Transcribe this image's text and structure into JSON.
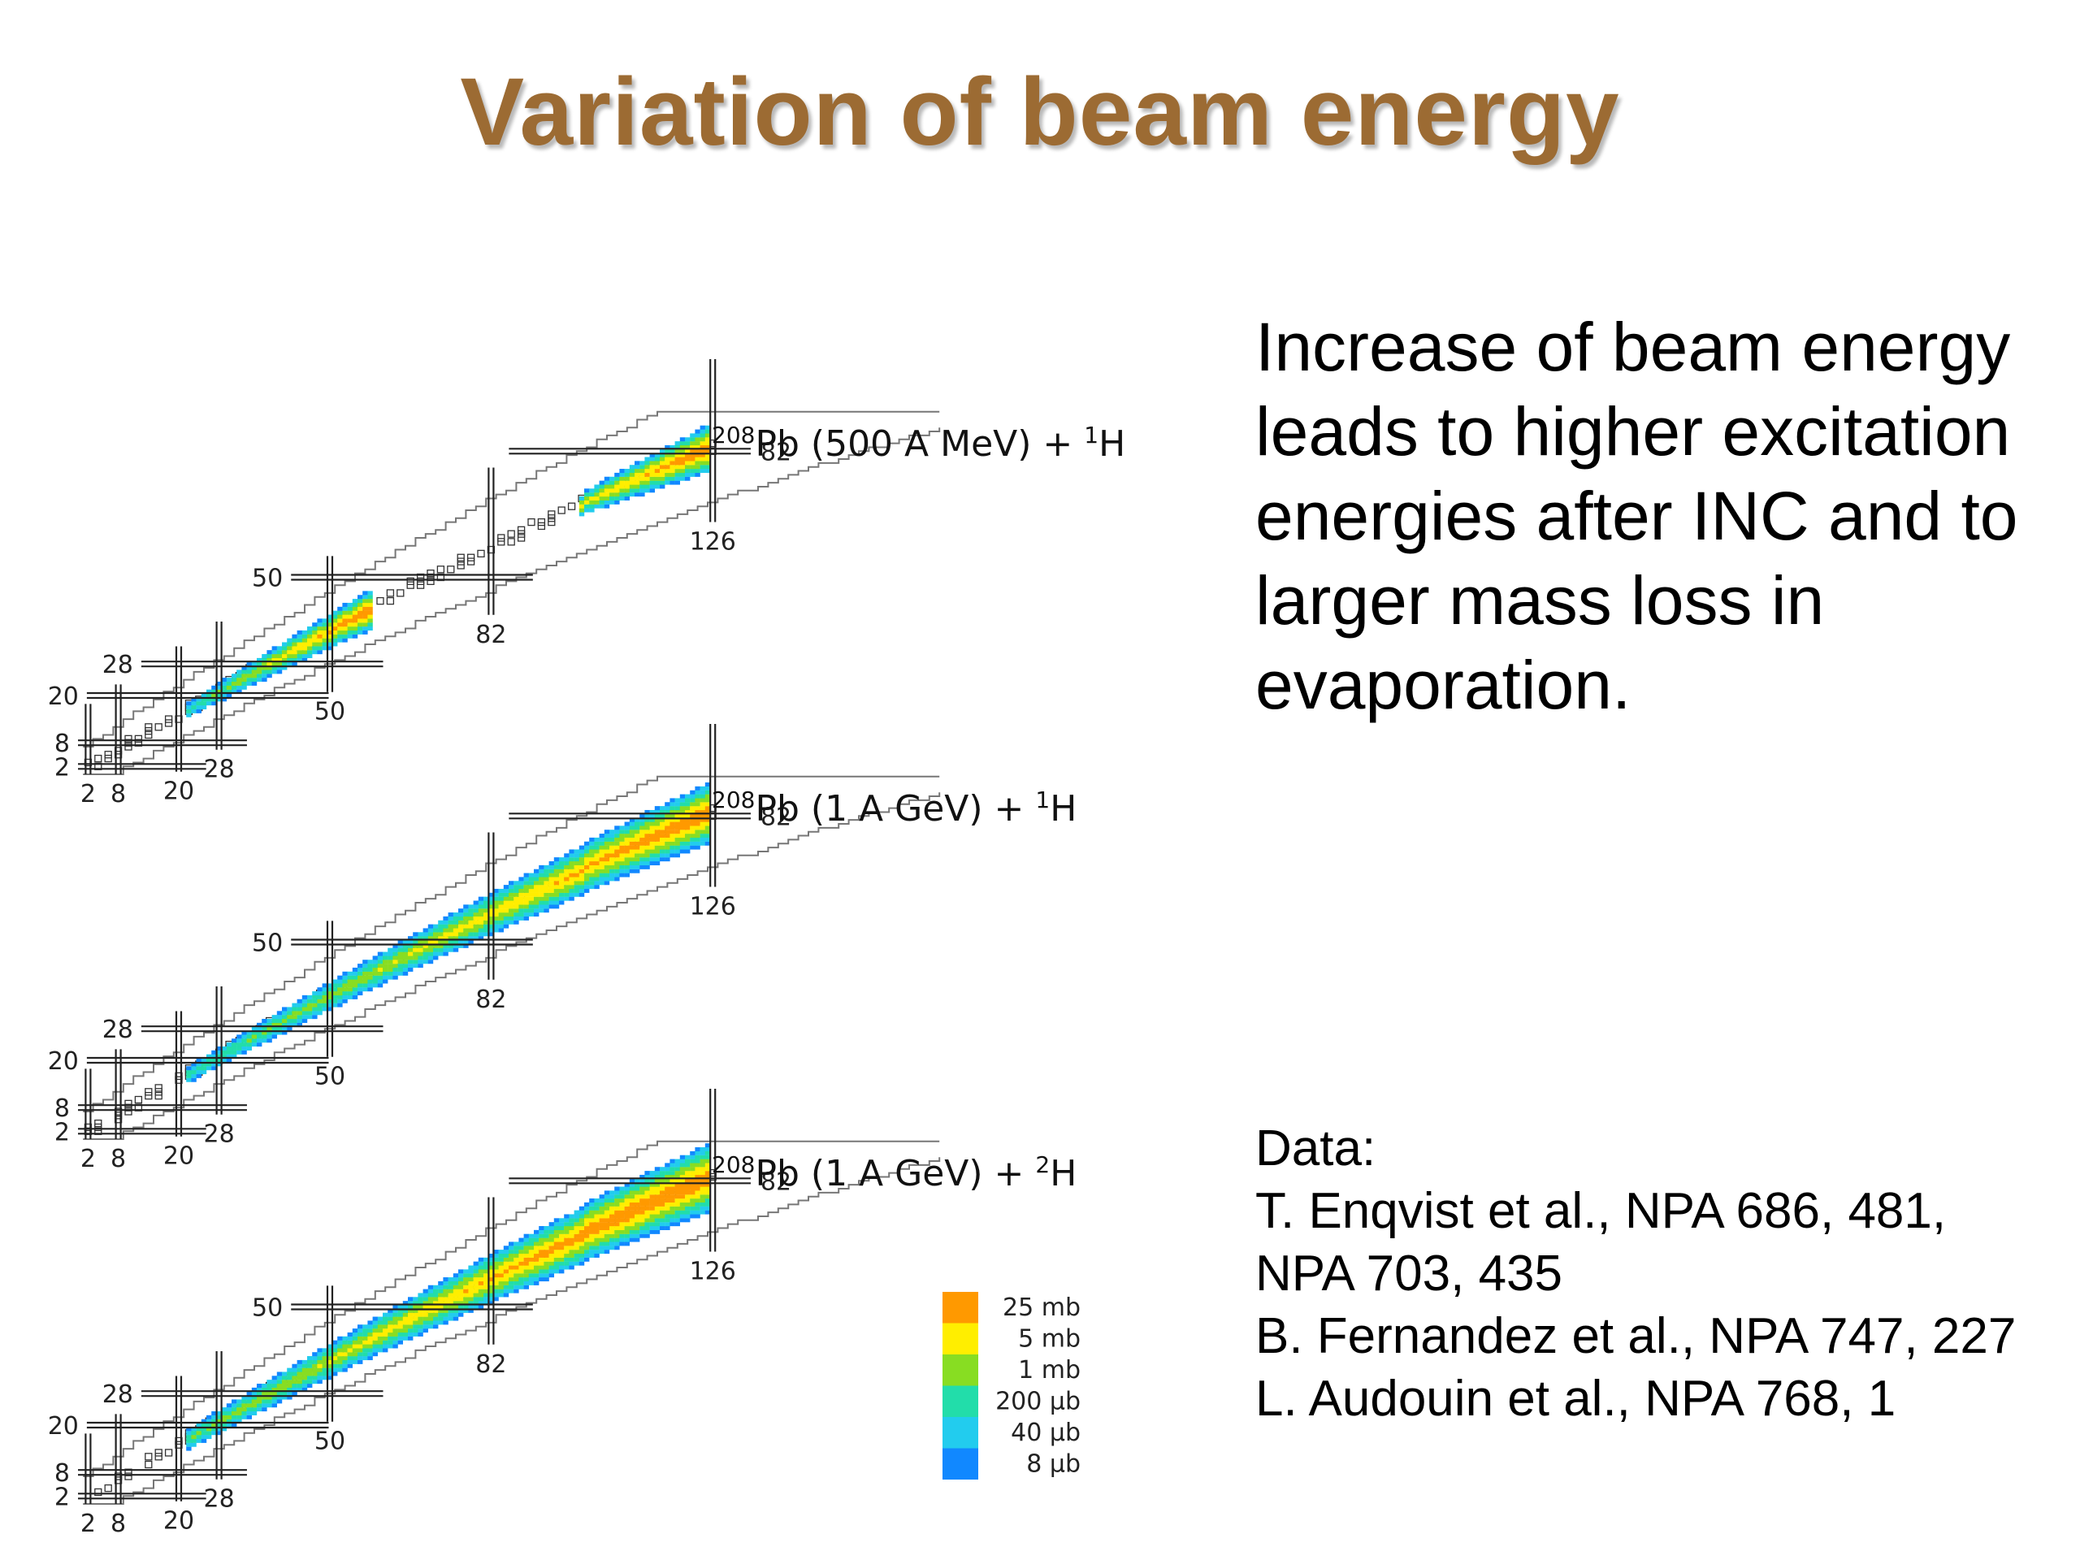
{
  "title": "Variation of beam energy",
  "description": "Increase of beam energy leads to higher excitation energies after INC and to larger mass loss in evaporation.",
  "references": {
    "heading": "Data:",
    "lines": [
      "T. Enqvist et al., NPA 686, 481,",
      "NPA 703, 435",
      "B. Fernandez et al., NPA 747, 227",
      "L. Audouin et al., NPA 768, 1"
    ]
  },
  "magic_numbers": [
    "2",
    "8",
    "20",
    "28",
    "50",
    "82",
    "126"
  ],
  "panels": [
    {
      "sup1": "208",
      "base": "Pb (500 A MeV) + ",
      "sup2": "1",
      "tail": "H",
      "profile": "500MeV"
    },
    {
      "sup1": "208",
      "base": "Pb (1 A GeV) + ",
      "sup2": "1",
      "tail": "H",
      "profile": "1GeV-p"
    },
    {
      "sup1": "208",
      "base": "Pb (1 A GeV) + ",
      "sup2": "2",
      "tail": "H",
      "profile": "1GeV-d"
    }
  ],
  "legend": [
    {
      "label": "25 mb",
      "color": "#ff9900"
    },
    {
      "label": "5 mb",
      "color": "#ffee00"
    },
    {
      "label": "1 mb",
      "color": "#88dd22"
    },
    {
      "label": "200 µb",
      "color": "#22ddaa"
    },
    {
      "label": "40 µb",
      "color": "#22ccee"
    },
    {
      "label": "8 µb",
      "color": "#1188ff"
    }
  ]
}
